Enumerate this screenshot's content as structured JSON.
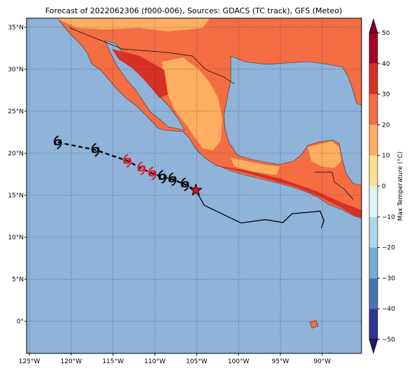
{
  "map": {
    "title": "Forecast of 2022062306 (f000-006), Sources: GDACS (TC track), GFS (Meteo)",
    "xlim": [
      -125.33,
      -85.3
    ],
    "ylim": [
      -3.83,
      36.08
    ],
    "xticks": [
      {
        "value": -125,
        "label": "125°W"
      },
      {
        "value": -120,
        "label": "120°W"
      },
      {
        "value": -115,
        "label": "115°W"
      },
      {
        "value": -110,
        "label": "110°W"
      },
      {
        "value": -105,
        "label": "105°W"
      },
      {
        "value": -100,
        "label": "100°W"
      },
      {
        "value": -95,
        "label": "95°W"
      },
      {
        "value": -90,
        "label": "90°W"
      }
    ],
    "yticks": [
      {
        "value": 0,
        "label": "0°"
      },
      {
        "value": 5,
        "label": "5°N"
      },
      {
        "value": 10,
        "label": "10°N"
      },
      {
        "value": 15,
        "label": "15°N"
      },
      {
        "value": 20,
        "label": "20°N"
      },
      {
        "value": 25,
        "label": "25°N"
      },
      {
        "value": 30,
        "label": "30°N"
      },
      {
        "value": 35,
        "label": "35°N"
      }
    ],
    "grid": true,
    "colorbar": {
      "label": "Max Temperature (°C)",
      "lim": [
        -50,
        50
      ],
      "ticks": [
        {
          "value": -50,
          "label": "−50"
        },
        {
          "value": -40,
          "label": "−40"
        },
        {
          "value": -30,
          "label": "−30"
        },
        {
          "value": -20,
          "label": "−20"
        },
        {
          "value": -10,
          "label": "−10"
        },
        0,
        10,
        20,
        30,
        40,
        50
      ],
      "colors": [
        "#313695",
        "#4575b4",
        "#74add1",
        "#abd9e9",
        "#e0f3f8",
        "#fee090",
        "#fdae61",
        "#f46d43",
        "#d73027",
        "#a50026"
      ],
      "under": "#1c1c6e",
      "over": "#7a0026"
    },
    "track": {
      "past": {
        "lon": [
          -105.1,
          -104.1,
          -99.7,
          -96.8,
          -94.7,
          -93.6,
          -90.25,
          -89.8,
          -90.1
        ],
        "lat": [
          15.6,
          13.8,
          11.7,
          12.1,
          11.75,
          12.8,
          13.1,
          12.0,
          11.1
        ],
        "color": "#000000"
      },
      "forecast": {
        "lon": [
          -121.6,
          -117.1,
          -113.3,
          -111.6,
          -110.3,
          -109.1,
          -107.9,
          -106.4
        ],
        "lat": [
          21.3,
          20.4,
          19.1,
          18.2,
          17.6,
          17.2,
          16.9,
          16.3
        ],
        "colors": [
          "#000000",
          "#000000",
          "#e8101a",
          "#e8101a",
          "#e8101a",
          "#000000",
          "#000000",
          "#000000"
        ]
      },
      "current": {
        "lon": -105.1,
        "lat": 15.6,
        "color": "#e8101a"
      }
    }
  }
}
